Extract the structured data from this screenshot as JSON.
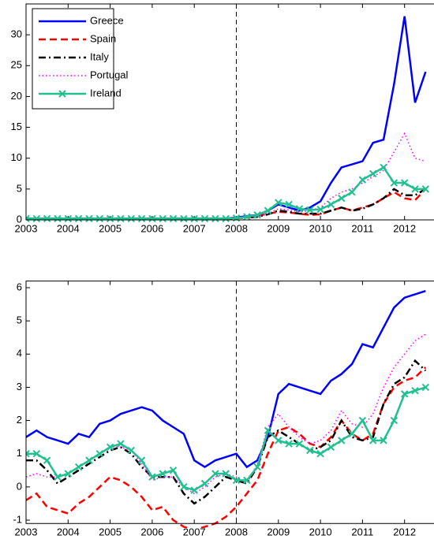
{
  "chart_data": [
    {
      "type": "line",
      "x": [
        2003,
        2003.25,
        2003.5,
        2003.75,
        2004,
        2004.25,
        2004.5,
        2004.75,
        2005,
        2005.25,
        2005.5,
        2005.75,
        2006,
        2006.25,
        2006.5,
        2006.75,
        2007,
        2007.25,
        2007.5,
        2007.75,
        2008,
        2008.25,
        2008.5,
        2008.75,
        2009,
        2009.25,
        2009.5,
        2009.75,
        2010,
        2010.25,
        2010.5,
        2010.75,
        2011,
        2011.25,
        2011.5,
        2011.75,
        2012,
        2012.25,
        2012.5
      ],
      "xlim": [
        2003,
        2012.7
      ],
      "xticks": [
        2003,
        2004,
        2005,
        2006,
        2007,
        2008,
        2009,
        2010,
        2011,
        2012
      ],
      "ylim": [
        0,
        35
      ],
      "yticks": [
        0,
        5,
        10,
        15,
        20,
        25,
        30
      ],
      "vline": 2008,
      "legend": "upper left",
      "series": [
        {
          "name": "Greece",
          "color": "#0000ff",
          "style": "solid",
          "values": [
            0.2,
            0.2,
            0.2,
            0.2,
            0.2,
            0.2,
            0.2,
            0.2,
            0.2,
            0.2,
            0.2,
            0.2,
            0.2,
            0.2,
            0.2,
            0.2,
            0.2,
            0.2,
            0.2,
            0.2,
            0.4,
            0.6,
            0.8,
            1.5,
            2.5,
            2.0,
            1.5,
            2.0,
            3.0,
            6.0,
            8.5,
            9.0,
            9.5,
            12.5,
            13.0,
            22.0,
            33.0,
            19.0,
            24.0
          ]
        },
        {
          "name": "Spain",
          "color": "#ff0000",
          "style": "dashed",
          "values": [
            0.1,
            0.1,
            0.1,
            0.1,
            0.1,
            0.1,
            0.1,
            0.1,
            0.1,
            0.1,
            0.1,
            0.1,
            0.1,
            0.1,
            0.1,
            0.1,
            0.1,
            0.1,
            0.1,
            0.1,
            0.3,
            0.4,
            0.6,
            1.0,
            1.3,
            1.2,
            1.0,
            0.8,
            0.9,
            1.5,
            2.0,
            1.5,
            2.0,
            2.5,
            3.5,
            4.5,
            3.5,
            3.2,
            5.0
          ]
        },
        {
          "name": "Italy",
          "color": "#000000",
          "style": "dashdot",
          "values": [
            0.2,
            0.2,
            0.2,
            0.2,
            0.2,
            0.2,
            0.2,
            0.2,
            0.2,
            0.2,
            0.2,
            0.2,
            0.2,
            0.2,
            0.2,
            0.2,
            0.2,
            0.2,
            0.2,
            0.2,
            0.3,
            0.4,
            0.5,
            0.9,
            1.5,
            1.3,
            1.0,
            1.0,
            1.0,
            1.5,
            2.0,
            1.5,
            1.8,
            2.5,
            3.5,
            5.0,
            4.0,
            4.0,
            5.0
          ]
        },
        {
          "name": "Portugal",
          "color": "#ff00ff",
          "style": "dotted",
          "values": [
            0.2,
            0.2,
            0.2,
            0.2,
            0.2,
            0.2,
            0.2,
            0.2,
            0.2,
            0.2,
            0.2,
            0.2,
            0.2,
            0.2,
            0.2,
            0.2,
            0.2,
            0.2,
            0.2,
            0.2,
            0.3,
            0.4,
            0.6,
            1.0,
            1.8,
            1.6,
            1.3,
            1.5,
            2.0,
            3.5,
            4.5,
            5.0,
            6.0,
            7.0,
            8.0,
            11.0,
            14.0,
            10.0,
            9.5
          ]
        },
        {
          "name": "Ireland",
          "color": "#20c090",
          "style": "solid",
          "marker": "x",
          "values": [
            0.2,
            0.2,
            0.2,
            0.2,
            0.2,
            0.2,
            0.2,
            0.2,
            0.2,
            0.2,
            0.2,
            0.2,
            0.2,
            0.2,
            0.2,
            0.2,
            0.2,
            0.2,
            0.2,
            0.2,
            0.3,
            0.5,
            0.8,
            1.5,
            2.8,
            2.5,
            1.8,
            1.6,
            1.7,
            2.5,
            3.5,
            4.5,
            6.5,
            7.5,
            8.5,
            6.0,
            6.0,
            5.0,
            5.0
          ]
        }
      ]
    },
    {
      "type": "line",
      "x": [
        2003,
        2003.25,
        2003.5,
        2003.75,
        2004,
        2004.25,
        2004.5,
        2004.75,
        2005,
        2005.25,
        2005.5,
        2005.75,
        2006,
        2006.25,
        2006.5,
        2006.75,
        2007,
        2007.25,
        2007.5,
        2007.75,
        2008,
        2008.25,
        2008.5,
        2008.75,
        2009,
        2009.25,
        2009.5,
        2009.75,
        2010,
        2010.25,
        2010.5,
        2010.75,
        2011,
        2011.25,
        2011.5,
        2011.75,
        2012,
        2012.25,
        2012.5
      ],
      "xlim": [
        2003,
        2012.7
      ],
      "xticks": [
        2003,
        2004,
        2005,
        2006,
        2007,
        2008,
        2009,
        2010,
        2011,
        2012
      ],
      "ylim": [
        -1.1,
        6.2
      ],
      "yticks": [
        -1,
        0,
        1,
        2,
        3,
        4,
        5,
        6
      ],
      "vline": 2008,
      "series": [
        {
          "name": "Greece",
          "color": "#0000ff",
          "style": "solid",
          "values": [
            1.5,
            1.7,
            1.5,
            1.4,
            1.3,
            1.6,
            1.5,
            1.9,
            2.0,
            2.2,
            2.3,
            2.4,
            2.3,
            2.0,
            1.8,
            1.6,
            0.8,
            0.6,
            0.8,
            0.9,
            1.0,
            0.6,
            0.8,
            1.5,
            2.8,
            3.1,
            3.0,
            2.9,
            2.8,
            3.2,
            3.4,
            3.7,
            4.3,
            4.2,
            4.8,
            5.4,
            5.7,
            5.8,
            5.9
          ]
        },
        {
          "name": "Spain",
          "color": "#ff0000",
          "style": "dashed",
          "values": [
            -0.4,
            -0.2,
            -0.6,
            -0.7,
            -0.8,
            -0.5,
            -0.3,
            0.0,
            0.3,
            0.2,
            0.0,
            -0.3,
            -0.7,
            -0.6,
            -1.0,
            -1.2,
            -1.3,
            -1.2,
            -1.1,
            -0.9,
            -0.6,
            -0.2,
            0.2,
            1.0,
            1.7,
            1.8,
            1.6,
            1.3,
            1.2,
            1.5,
            2.0,
            1.6,
            1.4,
            1.6,
            2.5,
            3.0,
            3.2,
            3.3,
            3.6
          ]
        },
        {
          "name": "Italy",
          "color": "#000000",
          "style": "dashdot",
          "values": [
            0.8,
            0.8,
            0.5,
            0.1,
            0.3,
            0.5,
            0.7,
            0.9,
            1.1,
            1.2,
            1.0,
            0.6,
            0.3,
            0.3,
            0.3,
            -0.2,
            -0.5,
            -0.3,
            0.0,
            0.3,
            0.2,
            0.1,
            0.6,
            1.5,
            1.7,
            1.5,
            1.3,
            1.1,
            1.2,
            1.4,
            2.0,
            1.5,
            1.4,
            1.5,
            2.5,
            3.1,
            3.3,
            3.8,
            3.5
          ]
        },
        {
          "name": "Portugal",
          "color": "#ff00ff",
          "style": "dotted",
          "values": [
            0.3,
            0.4,
            0.3,
            0.3,
            0.4,
            0.6,
            0.8,
            1.0,
            1.2,
            1.2,
            1.1,
            0.7,
            0.2,
            0.3,
            0.3,
            0.0,
            -0.2,
            0.0,
            0.3,
            0.4,
            0.3,
            0.1,
            0.7,
            1.8,
            2.2,
            1.8,
            1.5,
            1.3,
            1.4,
            1.7,
            2.3,
            1.9,
            1.8,
            2.2,
            3.0,
            3.6,
            4.0,
            4.4,
            4.6
          ]
        },
        {
          "name": "Ireland",
          "color": "#20c090",
          "style": "solid",
          "marker": "x",
          "values": [
            1.0,
            1.0,
            0.8,
            0.3,
            0.4,
            0.6,
            0.8,
            1.0,
            1.2,
            1.3,
            1.1,
            0.8,
            0.3,
            0.4,
            0.5,
            0.0,
            -0.1,
            0.1,
            0.4,
            0.4,
            0.2,
            0.2,
            0.6,
            1.7,
            1.4,
            1.3,
            1.3,
            1.1,
            1.0,
            1.2,
            1.4,
            1.6,
            2.0,
            1.4,
            1.4,
            2.0,
            2.8,
            2.9,
            3.0
          ]
        }
      ]
    }
  ]
}
